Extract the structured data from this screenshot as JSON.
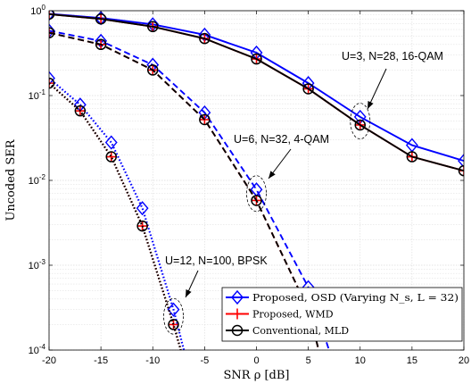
{
  "chart_data": {
    "type": "line",
    "title": "",
    "xlabel": "SNR ρ [dB]",
    "ylabel": "Uncoded SER",
    "xlim": [
      -20,
      20
    ],
    "ylim": [
      0.0001,
      1
    ],
    "yscale": "log",
    "grid": true,
    "legend_position": "bottom-right",
    "x_ticks": [
      -20,
      -15,
      -10,
      -5,
      0,
      5,
      10,
      15,
      20
    ],
    "x_tick_labels": [
      "-20",
      "-15",
      "-10",
      "-5",
      "0",
      "5",
      "10",
      "15",
      "20"
    ],
    "y_ticks": [
      0.0001,
      0.001,
      0.01,
      0.1,
      1
    ],
    "y_tick_labels": [
      {
        "base": "10",
        "exp": "-4"
      },
      {
        "base": "10",
        "exp": "-3"
      },
      {
        "base": "10",
        "exp": "-2"
      },
      {
        "base": "10",
        "exp": "-1"
      },
      {
        "base": "10",
        "exp": "0"
      }
    ],
    "legend": [
      {
        "label": "Proposed, OSD (Varying N_s, L = 32)",
        "color": "#0000ff",
        "marker": "diamond"
      },
      {
        "label": "Proposed, WMD",
        "color": "#ff0000",
        "marker": "plus"
      },
      {
        "label": "Conventional, MLD",
        "color": "#000000",
        "marker": "circle"
      }
    ],
    "series": [
      {
        "config": "U=3, N=28, 16-QAM",
        "method": "Proposed, OSD",
        "color": "#0000ff",
        "dash": "solid",
        "marker": "diamond",
        "x": [
          -20,
          -15,
          -10,
          -5,
          0,
          5,
          10,
          15,
          20
        ],
        "y": [
          0.92,
          0.82,
          0.69,
          0.52,
          0.32,
          0.14,
          0.056,
          0.026,
          0.017
        ]
      },
      {
        "config": "U=3, N=28, 16-QAM",
        "method": "Proposed, WMD",
        "color": "#ff0000",
        "dash": "solid",
        "marker": "plus",
        "x": [
          -20,
          -15,
          -10,
          -5,
          0,
          5,
          10,
          15,
          20
        ],
        "y": [
          0.91,
          0.8,
          0.65,
          0.47,
          0.27,
          0.12,
          0.045,
          0.019,
          0.013
        ]
      },
      {
        "config": "U=3, N=28, 16-QAM",
        "method": "Conventional, MLD",
        "color": "#000000",
        "dash": "solid",
        "marker": "circle",
        "x": [
          -20,
          -15,
          -10,
          -5,
          0,
          5,
          10,
          15,
          20
        ],
        "y": [
          0.91,
          0.8,
          0.65,
          0.47,
          0.27,
          0.12,
          0.045,
          0.019,
          0.013
        ]
      },
      {
        "config": "U=6, N=32, 4-QAM",
        "method": "Proposed, OSD",
        "color": "#0000ff",
        "dash": "dashed",
        "marker": "diamond",
        "x": [
          -20,
          -15,
          -10,
          -5,
          0,
          5,
          7
        ],
        "y": [
          0.58,
          0.44,
          0.23,
          0.063,
          0.0078,
          0.00055,
          0.0001
        ]
      },
      {
        "config": "U=6, N=32, 4-QAM",
        "method": "Proposed, WMD",
        "color": "#ff0000",
        "dash": "dashed",
        "marker": "plus",
        "x": [
          -20,
          -15,
          -10,
          -5,
          0,
          5,
          6
        ],
        "y": [
          0.55,
          0.4,
          0.2,
          0.052,
          0.0058,
          0.0003,
          0.0001
        ]
      },
      {
        "config": "U=6, N=32, 4-QAM",
        "method": "Conventional, MLD",
        "color": "#000000",
        "dash": "dashed",
        "marker": "circle",
        "x": [
          -20,
          -15,
          -10,
          -5,
          0,
          5,
          6
        ],
        "y": [
          0.55,
          0.4,
          0.2,
          0.052,
          0.0058,
          0.0003,
          0.0001
        ]
      },
      {
        "config": "U=12, N=100, BPSK",
        "method": "Proposed, OSD",
        "color": "#0000ff",
        "dash": "dotted",
        "marker": "diamond",
        "x": [
          -20,
          -17,
          -14,
          -11,
          -8,
          -7
        ],
        "y": [
          0.16,
          0.078,
          0.028,
          0.0047,
          0.0003,
          0.0001
        ]
      },
      {
        "config": "U=12, N=100, BPSK",
        "method": "Proposed, WMD",
        "color": "#ff0000",
        "dash": "dotted",
        "marker": "plus",
        "x": [
          -20,
          -17,
          -14,
          -11,
          -8,
          -7.3
        ],
        "y": [
          0.14,
          0.066,
          0.019,
          0.0029,
          0.0002,
          0.0001
        ]
      },
      {
        "config": "U=12, N=100, BPSK",
        "method": "Conventional, MLD",
        "color": "#000000",
        "dash": "dotted",
        "marker": "circle",
        "x": [
          -20,
          -17,
          -14,
          -11,
          -8,
          -7.3
        ],
        "y": [
          0.14,
          0.066,
          0.019,
          0.0029,
          0.0002,
          0.0001
        ]
      }
    ],
    "annotations": [
      {
        "text": "U=3, N=28, 16-QAM",
        "point": [
          10,
          0.05
        ]
      },
      {
        "text": "U=6, N=32, 4-QAM",
        "point": [
          0,
          0.007
        ]
      },
      {
        "text": "U=12, N=100, BPSK",
        "point": [
          -8,
          0.00025
        ]
      }
    ]
  }
}
